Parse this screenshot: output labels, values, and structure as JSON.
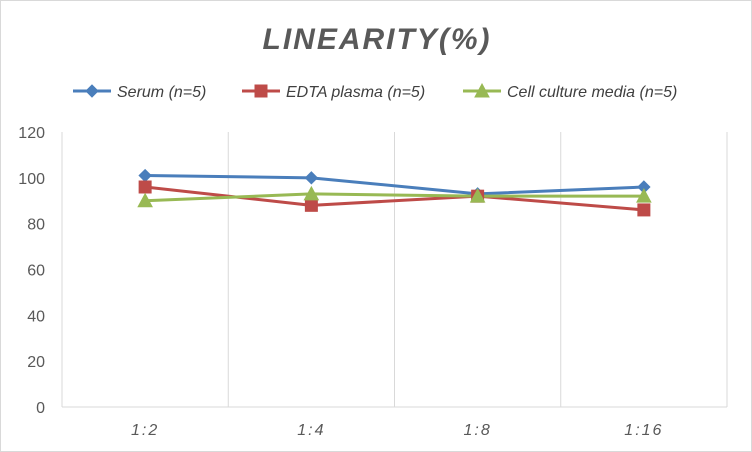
{
  "chart_data": {
    "type": "line",
    "title": "LINEARITY(%)",
    "xlabel": "",
    "ylabel": "",
    "categories": [
      "1:2",
      "1:4",
      "1:8",
      "1:16"
    ],
    "ylim": [
      0,
      120
    ],
    "yticks": [
      0,
      20,
      40,
      60,
      80,
      100,
      120
    ],
    "grid": "vertical",
    "legend_position": "top",
    "series": [
      {
        "name": "Serum (n=5)",
        "values": [
          101,
          100,
          93,
          96
        ],
        "color": "#4a7ebb",
        "marker": "diamond"
      },
      {
        "name": "EDTA plasma (n=5)",
        "values": [
          96,
          88,
          92,
          86
        ],
        "color": "#be4b48",
        "marker": "square"
      },
      {
        "name": "Cell culture media (n=5)",
        "values": [
          90,
          93,
          92,
          92
        ],
        "color": "#98b954",
        "marker": "triangle"
      }
    ]
  }
}
